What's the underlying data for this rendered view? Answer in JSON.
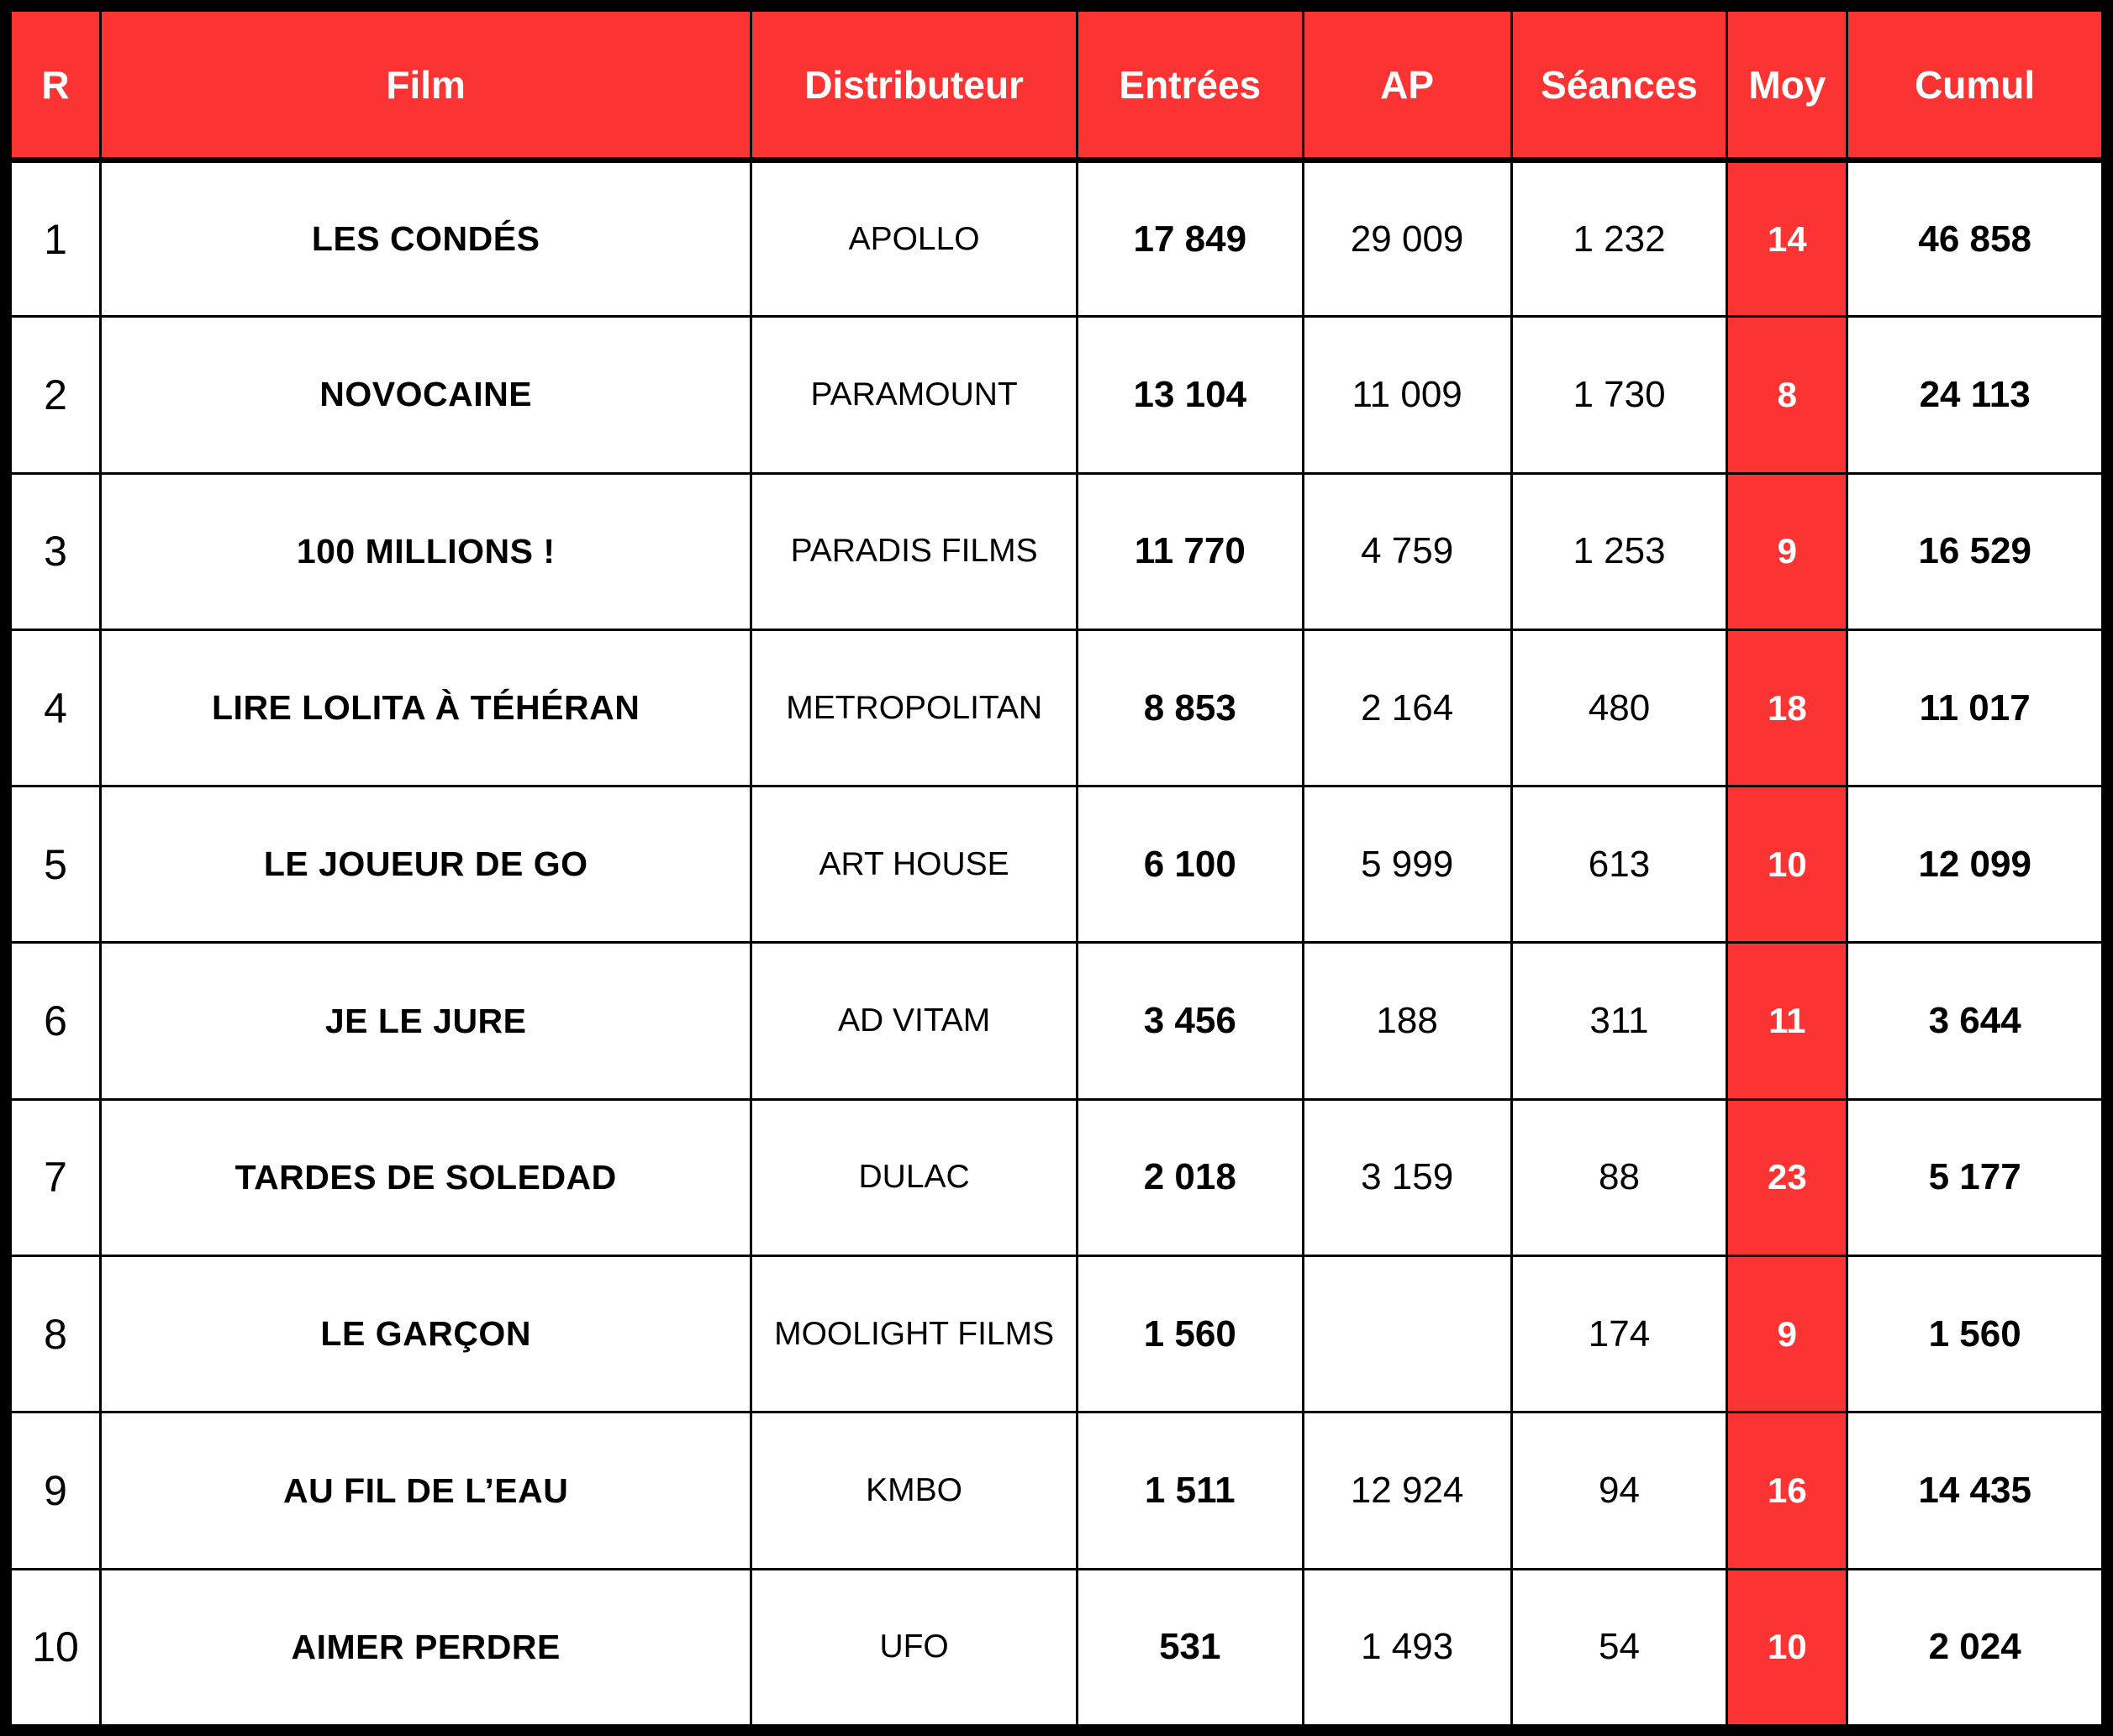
{
  "colors": {
    "accent_red": "#FB3333",
    "header_text": "#FFFFFF",
    "border": "#000000",
    "body_text": "#000000"
  },
  "table": {
    "columns": [
      {
        "key": "rank",
        "label": "R"
      },
      {
        "key": "film",
        "label": "Film"
      },
      {
        "key": "distributor",
        "label": "Distributeur"
      },
      {
        "key": "entrees",
        "label": "Entrées"
      },
      {
        "key": "ap",
        "label": "AP"
      },
      {
        "key": "seances",
        "label": "Séances"
      },
      {
        "key": "moy",
        "label": "Moy"
      },
      {
        "key": "cumul",
        "label": "Cumul"
      }
    ],
    "rows": [
      {
        "rank": "1",
        "film": "LES CONDÉS",
        "distributor": "APOLLO",
        "entrees": "17 849",
        "ap": "29 009",
        "seances": "1 232",
        "moy": "14",
        "cumul": "46 858"
      },
      {
        "rank": "2",
        "film": "NOVOCAINE",
        "distributor": "PARAMOUNT",
        "entrees": "13 104",
        "ap": "11 009",
        "seances": "1 730",
        "moy": "8",
        "cumul": "24 113"
      },
      {
        "rank": "3",
        "film": "100 MILLIONS !",
        "distributor": "PARADIS FILMS",
        "entrees": "11 770",
        "ap": "4 759",
        "seances": "1 253",
        "moy": "9",
        "cumul": "16 529"
      },
      {
        "rank": "4",
        "film": "LIRE LOLITA À TÉHÉRAN",
        "distributor": "METROPOLITAN",
        "entrees": "8 853",
        "ap": "2 164",
        "seances": "480",
        "moy": "18",
        "cumul": "11 017"
      },
      {
        "rank": "5",
        "film": "LE JOUEUR DE GO",
        "distributor": "ART HOUSE",
        "entrees": "6 100",
        "ap": "5 999",
        "seances": "613",
        "moy": "10",
        "cumul": "12 099"
      },
      {
        "rank": "6",
        "film": "JE LE JURE",
        "distributor": "AD VITAM",
        "entrees": "3 456",
        "ap": "188",
        "seances": "311",
        "moy": "11",
        "cumul": "3 644"
      },
      {
        "rank": "7",
        "film": "TARDES DE SOLEDAD",
        "distributor": "DULAC",
        "entrees": "2 018",
        "ap": "3 159",
        "seances": "88",
        "moy": "23",
        "cumul": "5 177"
      },
      {
        "rank": "8",
        "film": "LE GARÇON",
        "distributor": "MOOLIGHT FILMS",
        "entrees": "1 560",
        "ap": "",
        "seances": "174",
        "moy": "9",
        "cumul": "1 560"
      },
      {
        "rank": "9",
        "film": "AU FIL DE L’EAU",
        "distributor": "KMBO",
        "entrees": "1 511",
        "ap": "12 924",
        "seances": "94",
        "moy": "16",
        "cumul": "14 435"
      },
      {
        "rank": "10",
        "film": "AIMER PERDRE",
        "distributor": "UFO",
        "entrees": "531",
        "ap": "1 493",
        "seances": "54",
        "moy": "10",
        "cumul": "2 024"
      }
    ]
  },
  "chart_data": {
    "type": "table",
    "title": "",
    "columns": [
      "R",
      "Film",
      "Distributeur",
      "Entrées",
      "AP",
      "Séances",
      "Moy",
      "Cumul"
    ],
    "rows": [
      [
        "1",
        "LES CONDÉS",
        "APOLLO",
        "17 849",
        "29 009",
        "1 232",
        "14",
        "46 858"
      ],
      [
        "2",
        "NOVOCAINE",
        "PARAMOUNT",
        "13 104",
        "11 009",
        "1 730",
        "8",
        "24 113"
      ],
      [
        "3",
        "100 MILLIONS !",
        "PARADIS FILMS",
        "11 770",
        "4 759",
        "1 253",
        "9",
        "16 529"
      ],
      [
        "4",
        "LIRE LOLITA À TÉHÉRAN",
        "METROPOLITAN",
        "8 853",
        "2 164",
        "480",
        "18",
        "11 017"
      ],
      [
        "5",
        "LE JOUEUR DE GO",
        "ART HOUSE",
        "6 100",
        "5 999",
        "613",
        "10",
        "12 099"
      ],
      [
        "6",
        "JE LE JURE",
        "AD VITAM",
        "3 456",
        "188",
        "311",
        "11",
        "3 644"
      ],
      [
        "7",
        "TARDES DE SOLEDAD",
        "DULAC",
        "2 018",
        "3 159",
        "88",
        "23",
        "5 177"
      ],
      [
        "8",
        "LE GARÇON",
        "MOOLIGHT FILMS",
        "1 560",
        "",
        "174",
        "9",
        "1 560"
      ],
      [
        "9",
        "AU FIL DE L’EAU",
        "KMBO",
        "1 511",
        "12 924",
        "94",
        "16",
        "14 435"
      ],
      [
        "10",
        "AIMER PERDRE",
        "UFO",
        "531",
        "1 493",
        "54",
        "10",
        "2 024"
      ]
    ],
    "layout": {
      "header_bg": "#FB3333",
      "moy_column_bg": "#FB3333",
      "grid": true
    }
  }
}
